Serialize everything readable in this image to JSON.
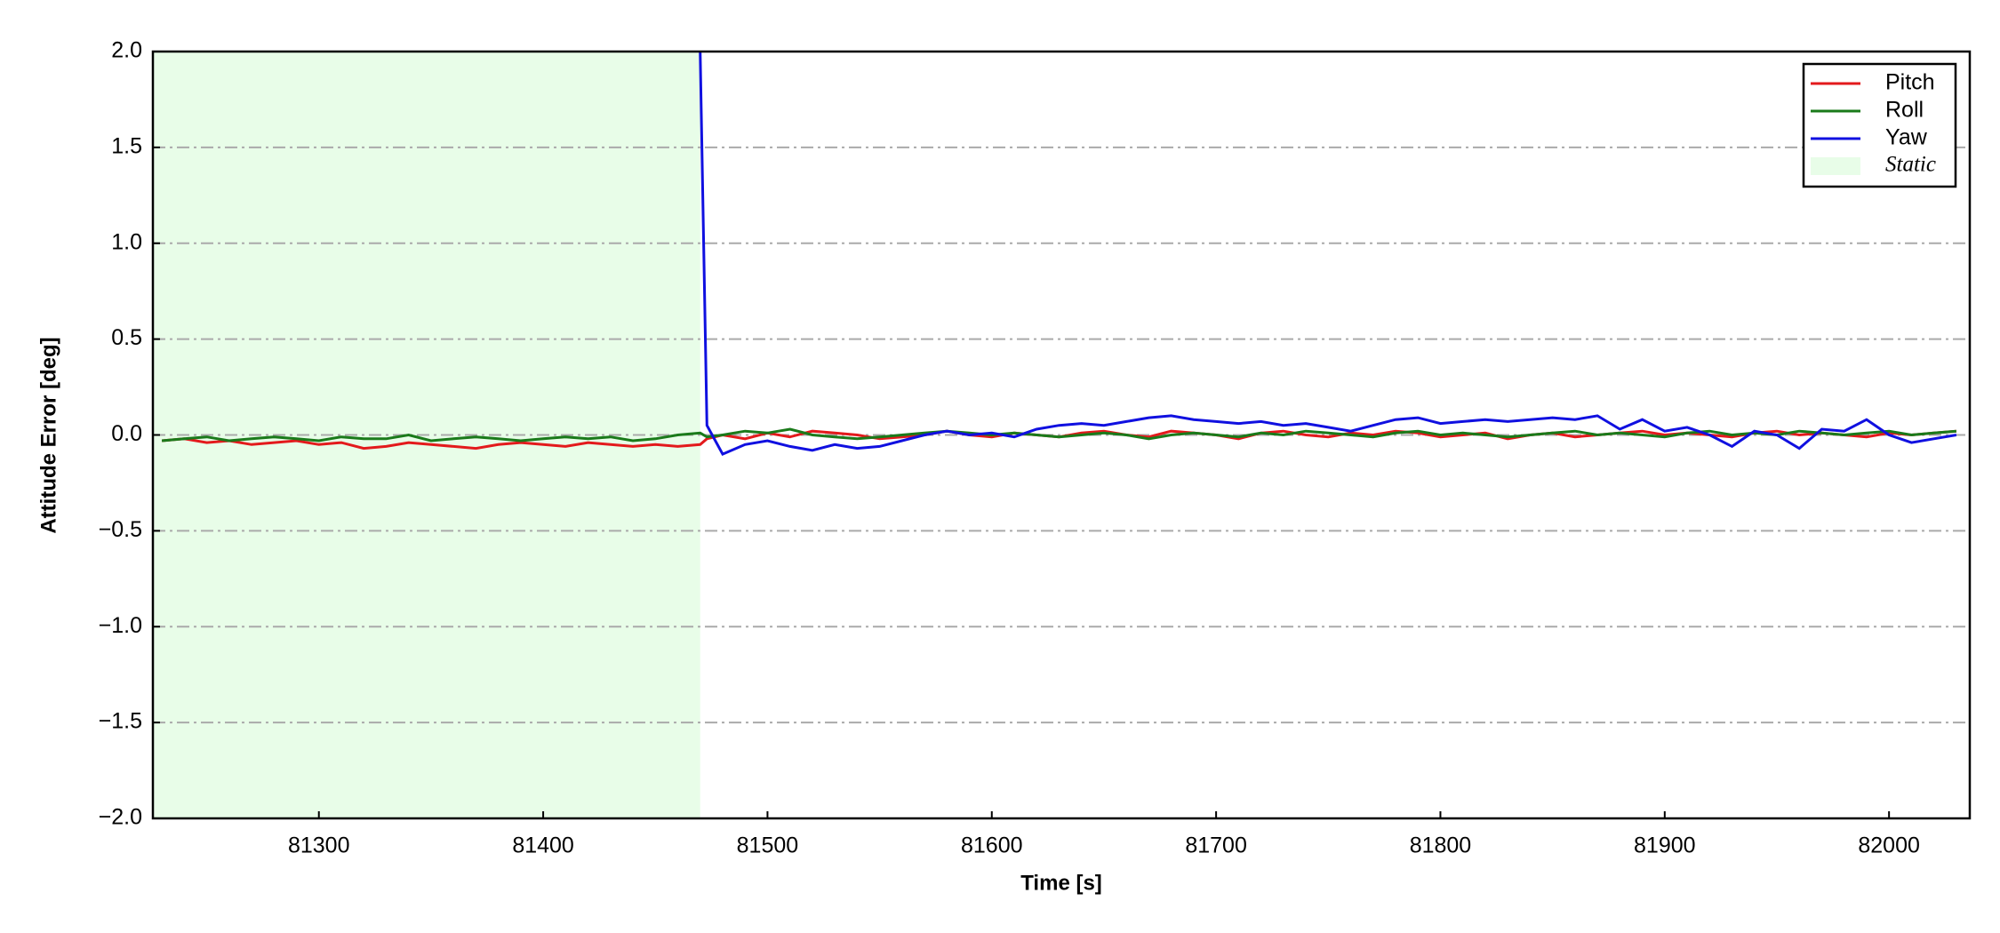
{
  "chart_data": {
    "type": "line",
    "x_label": "Time [s]",
    "y_label": "Attitude Error [deg]",
    "xlim": [
      81226,
      82036
    ],
    "ylim": [
      -2.0,
      2.0
    ],
    "xticks": [
      81300,
      81400,
      81500,
      81600,
      81700,
      81800,
      81900,
      82000
    ],
    "yticks": [
      {
        "value": -2.0,
        "label": "−2.0"
      },
      {
        "value": -1.5,
        "label": "−1.5"
      },
      {
        "value": -1.0,
        "label": "−1.0"
      },
      {
        "value": -0.5,
        "label": "−0.5"
      },
      {
        "value": 0.0,
        "label": "0.0"
      },
      {
        "value": 0.5,
        "label": "0.5"
      },
      {
        "value": 1.0,
        "label": "1.0"
      },
      {
        "value": 1.5,
        "label": "1.5"
      },
      {
        "value": 2.0,
        "label": "2.0"
      }
    ],
    "grid": true,
    "legend": "upper right",
    "static_span": {
      "name": "Static",
      "color": "#e8fde8",
      "x": [
        81226,
        81470
      ]
    },
    "x": [
      81230,
      81240,
      81250,
      81260,
      81270,
      81280,
      81290,
      81300,
      81310,
      81320,
      81330,
      81340,
      81350,
      81360,
      81370,
      81380,
      81390,
      81400,
      81410,
      81420,
      81430,
      81440,
      81450,
      81460,
      81470,
      81473,
      81480,
      81490,
      81500,
      81510,
      81520,
      81530,
      81540,
      81550,
      81560,
      81570,
      81580,
      81590,
      81600,
      81610,
      81620,
      81630,
      81640,
      81650,
      81660,
      81670,
      81680,
      81690,
      81700,
      81710,
      81720,
      81730,
      81740,
      81750,
      81760,
      81770,
      81780,
      81790,
      81800,
      81810,
      81820,
      81830,
      81840,
      81850,
      81860,
      81870,
      81880,
      81890,
      81900,
      81910,
      81920,
      81930,
      81940,
      81950,
      81960,
      81970,
      81980,
      81990,
      82000,
      82010,
      82020,
      82030
    ],
    "series": [
      {
        "name": "Pitch",
        "color": "#e31a1c",
        "values": [
          -0.03,
          -0.02,
          -0.04,
          -0.03,
          -0.05,
          -0.04,
          -0.03,
          -0.05,
          -0.04,
          -0.07,
          -0.06,
          -0.04,
          -0.05,
          -0.06,
          -0.07,
          -0.05,
          -0.04,
          -0.05,
          -0.06,
          -0.04,
          -0.05,
          -0.06,
          -0.05,
          -0.06,
          -0.05,
          -0.02,
          0.0,
          -0.02,
          0.01,
          -0.01,
          0.02,
          0.01,
          0.0,
          -0.02,
          -0.01,
          0.0,
          0.02,
          0.0,
          -0.01,
          0.01,
          0.0,
          -0.01,
          0.01,
          0.02,
          0.0,
          -0.01,
          0.02,
          0.01,
          0.0,
          -0.02,
          0.01,
          0.02,
          0.0,
          -0.01,
          0.01,
          0.0,
          0.02,
          0.01,
          -0.01,
          0.0,
          0.01,
          -0.02,
          0.0,
          0.01,
          -0.01,
          0.0,
          0.01,
          0.02,
          0.0,
          0.01,
          0.0,
          -0.01,
          0.01,
          0.02,
          0.0,
          0.01,
          0.0,
          -0.01,
          0.01,
          0.0,
          0.01,
          0.02
        ]
      },
      {
        "name": "Roll",
        "color": "#1a7a1a",
        "values": [
          -0.03,
          -0.02,
          -0.01,
          -0.03,
          -0.02,
          -0.01,
          -0.02,
          -0.03,
          -0.01,
          -0.02,
          -0.02,
          0.0,
          -0.03,
          -0.02,
          -0.01,
          -0.02,
          -0.03,
          -0.02,
          -0.01,
          -0.02,
          -0.01,
          -0.03,
          -0.02,
          0.0,
          0.01,
          -0.01,
          0.0,
          0.02,
          0.01,
          0.03,
          0.0,
          -0.01,
          -0.02,
          -0.01,
          0.0,
          0.01,
          0.02,
          0.01,
          0.0,
          0.01,
          0.0,
          -0.01,
          0.0,
          0.01,
          0.0,
          -0.02,
          0.0,
          0.01,
          0.0,
          -0.01,
          0.01,
          0.0,
          0.02,
          0.01,
          0.0,
          -0.01,
          0.01,
          0.02,
          0.0,
          0.01,
          0.0,
          -0.01,
          0.0,
          0.01,
          0.02,
          0.0,
          0.01,
          0.0,
          -0.01,
          0.01,
          0.02,
          0.0,
          0.01,
          0.0,
          0.02,
          0.01,
          0.0,
          0.01,
          0.02,
          0.0,
          0.01,
          0.02
        ]
      },
      {
        "name": "Yaw",
        "color": "#1010e0",
        "values": [
          null,
          null,
          null,
          null,
          null,
          null,
          null,
          null,
          null,
          null,
          null,
          null,
          null,
          null,
          null,
          null,
          null,
          null,
          null,
          null,
          null,
          null,
          null,
          null,
          2.0,
          0.05,
          -0.1,
          -0.05,
          -0.03,
          -0.06,
          -0.08,
          -0.05,
          -0.07,
          -0.06,
          -0.03,
          0.0,
          0.02,
          0.0,
          0.01,
          -0.01,
          0.03,
          0.05,
          0.06,
          0.05,
          0.07,
          0.09,
          0.1,
          0.08,
          0.07,
          0.06,
          0.07,
          0.05,
          0.06,
          0.04,
          0.02,
          0.05,
          0.08,
          0.09,
          0.06,
          0.07,
          0.08,
          0.07,
          0.08,
          0.09,
          0.08,
          0.1,
          0.03,
          0.08,
          0.02,
          0.04,
          0.0,
          -0.06,
          0.02,
          0.0,
          -0.07,
          0.03,
          0.02,
          0.08,
          0.0,
          -0.04,
          -0.02,
          0.0
        ]
      }
    ]
  }
}
